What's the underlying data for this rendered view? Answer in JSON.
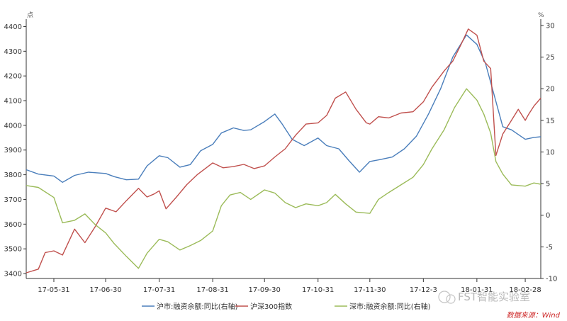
{
  "chart_data": {
    "type": "line",
    "y_left": {
      "unit": "点",
      "ylim": [
        3380,
        4430
      ],
      "ticks": [
        3400,
        3500,
        3600,
        3700,
        3800,
        3900,
        4000,
        4100,
        4200,
        4300,
        4400
      ]
    },
    "y_right": {
      "unit": "%",
      "ylim": [
        -10,
        31
      ],
      "ticks": [
        -10,
        -5,
        0,
        5,
        10,
        15,
        20,
        25,
        30
      ]
    },
    "x_ticks": [
      {
        "date": "2017-05-31",
        "label": "17-05-31"
      },
      {
        "date": "2017-06-30",
        "label": "17-06-30"
      },
      {
        "date": "2017-07-31",
        "label": "17-07-31"
      },
      {
        "date": "2017-08-31",
        "label": "17-08-31"
      },
      {
        "date": "2017-09-30",
        "label": "17-09-30"
      },
      {
        "date": "2017-10-31",
        "label": "17-10-31"
      },
      {
        "date": "2017-11-30",
        "label": "17-11-30"
      },
      {
        "date": "2017-12-31",
        "label": "17-12-3"
      },
      {
        "date": "2018-01-31",
        "label": "18-01-31"
      },
      {
        "date": "2018-02-28",
        "label": "18-02-28"
      }
    ],
    "x_range": [
      "2017-05-15",
      "2018-03-09"
    ],
    "grid": false,
    "legend_position": "bottom",
    "series": [
      {
        "name": "沪市:融资余额:同比(右轴)",
        "axis": "right",
        "color": "#4a7ebb",
        "points": [
          [
            "2017-05-15",
            7.2
          ],
          [
            "2017-05-22",
            6.5
          ],
          [
            "2017-05-31",
            6.2
          ],
          [
            "2017-06-05",
            5.2
          ],
          [
            "2017-06-12",
            6.3
          ],
          [
            "2017-06-20",
            6.8
          ],
          [
            "2017-06-30",
            6.6
          ],
          [
            "2017-07-05",
            6.1
          ],
          [
            "2017-07-12",
            5.6
          ],
          [
            "2017-07-19",
            5.7
          ],
          [
            "2017-07-24",
            7.8
          ],
          [
            "2017-07-31",
            9.4
          ],
          [
            "2017-08-05",
            9.1
          ],
          [
            "2017-08-12",
            7.6
          ],
          [
            "2017-08-18",
            8.0
          ],
          [
            "2017-08-24",
            10.2
          ],
          [
            "2017-08-31",
            11.2
          ],
          [
            "2017-09-05",
            13.0
          ],
          [
            "2017-09-12",
            13.8
          ],
          [
            "2017-09-18",
            13.4
          ],
          [
            "2017-09-22",
            13.5
          ],
          [
            "2017-09-30",
            14.8
          ],
          [
            "2017-10-06",
            16.0
          ],
          [
            "2017-10-10",
            14.5
          ],
          [
            "2017-10-16",
            12.0
          ],
          [
            "2017-10-23",
            11.0
          ],
          [
            "2017-10-31",
            12.2
          ],
          [
            "2017-11-05",
            11.0
          ],
          [
            "2017-11-12",
            10.5
          ],
          [
            "2017-11-18",
            8.6
          ],
          [
            "2017-11-24",
            6.8
          ],
          [
            "2017-11-30",
            8.5
          ],
          [
            "2017-12-06",
            8.8
          ],
          [
            "2017-12-13",
            9.2
          ],
          [
            "2017-12-20",
            10.5
          ],
          [
            "2017-12-27",
            12.5
          ],
          [
            "2018-01-03",
            16.0
          ],
          [
            "2018-01-10",
            20.0
          ],
          [
            "2018-01-17",
            25.0
          ],
          [
            "2018-01-25",
            28.5
          ],
          [
            "2018-01-31",
            27.0
          ],
          [
            "2018-02-05",
            24.0
          ],
          [
            "2018-02-10",
            19.0
          ],
          [
            "2018-02-15",
            14.0
          ],
          [
            "2018-02-20",
            13.5
          ],
          [
            "2018-02-28",
            12.0
          ],
          [
            "2018-03-05",
            12.3
          ],
          [
            "2018-03-09",
            12.4
          ]
        ]
      },
      {
        "name": "沪深300指数",
        "axis": "left",
        "color": "#c0504d",
        "points": [
          [
            "2017-05-15",
            3403
          ],
          [
            "2017-05-22",
            3418
          ],
          [
            "2017-05-26",
            3485
          ],
          [
            "2017-05-31",
            3492
          ],
          [
            "2017-06-05",
            3475
          ],
          [
            "2017-06-12",
            3580
          ],
          [
            "2017-06-18",
            3525
          ],
          [
            "2017-06-24",
            3590
          ],
          [
            "2017-06-30",
            3665
          ],
          [
            "2017-07-06",
            3650
          ],
          [
            "2017-07-12",
            3695
          ],
          [
            "2017-07-19",
            3745
          ],
          [
            "2017-07-24",
            3710
          ],
          [
            "2017-07-28",
            3722
          ],
          [
            "2017-07-31",
            3735
          ],
          [
            "2017-08-04",
            3662
          ],
          [
            "2017-08-10",
            3710
          ],
          [
            "2017-08-16",
            3760
          ],
          [
            "2017-08-22",
            3800
          ],
          [
            "2017-08-31",
            3848
          ],
          [
            "2017-09-06",
            3828
          ],
          [
            "2017-09-12",
            3833
          ],
          [
            "2017-09-18",
            3842
          ],
          [
            "2017-09-24",
            3825
          ],
          [
            "2017-09-30",
            3836
          ],
          [
            "2017-10-06",
            3872
          ],
          [
            "2017-10-12",
            3905
          ],
          [
            "2017-10-18",
            3960
          ],
          [
            "2017-10-24",
            4005
          ],
          [
            "2017-10-31",
            4010
          ],
          [
            "2017-11-05",
            4040
          ],
          [
            "2017-11-10",
            4110
          ],
          [
            "2017-11-16",
            4135
          ],
          [
            "2017-11-22",
            4065
          ],
          [
            "2017-11-28",
            4010
          ],
          [
            "2017-11-30",
            4005
          ],
          [
            "2017-12-05",
            4035
          ],
          [
            "2017-12-11",
            4030
          ],
          [
            "2017-12-18",
            4050
          ],
          [
            "2017-12-25",
            4055
          ],
          [
            "2017-12-31",
            4095
          ],
          [
            "2018-01-05",
            4155
          ],
          [
            "2018-01-12",
            4220
          ],
          [
            "2018-01-17",
            4260
          ],
          [
            "2018-01-22",
            4330
          ],
          [
            "2018-01-26",
            4390
          ],
          [
            "2018-01-31",
            4365
          ],
          [
            "2018-02-04",
            4260
          ],
          [
            "2018-02-08",
            4230
          ],
          [
            "2018-02-11",
            3878
          ],
          [
            "2018-02-15",
            3965
          ],
          [
            "2018-02-20",
            4020
          ],
          [
            "2018-02-24",
            4065
          ],
          [
            "2018-02-28",
            4020
          ],
          [
            "2018-03-02",
            4045
          ],
          [
            "2018-03-05",
            4078
          ],
          [
            "2018-03-09",
            4110
          ]
        ]
      },
      {
        "name": "深市:融资余额:同比(右轴)",
        "axis": "right",
        "color": "#9bbb59",
        "points": [
          [
            "2017-05-15",
            4.7
          ],
          [
            "2017-05-22",
            4.4
          ],
          [
            "2017-05-31",
            2.8
          ],
          [
            "2017-06-05",
            -1.2
          ],
          [
            "2017-06-12",
            -0.8
          ],
          [
            "2017-06-18",
            0.2
          ],
          [
            "2017-06-24",
            -1.5
          ],
          [
            "2017-06-30",
            -2.8
          ],
          [
            "2017-07-05",
            -4.5
          ],
          [
            "2017-07-12",
            -6.5
          ],
          [
            "2017-07-19",
            -8.4
          ],
          [
            "2017-07-24",
            -6.0
          ],
          [
            "2017-07-31",
            -3.8
          ],
          [
            "2017-08-05",
            -4.2
          ],
          [
            "2017-08-12",
            -5.5
          ],
          [
            "2017-08-18",
            -4.8
          ],
          [
            "2017-08-24",
            -4.0
          ],
          [
            "2017-08-31",
            -2.5
          ],
          [
            "2017-09-05",
            1.5
          ],
          [
            "2017-09-10",
            3.2
          ],
          [
            "2017-09-16",
            3.6
          ],
          [
            "2017-09-22",
            2.5
          ],
          [
            "2017-09-30",
            4.0
          ],
          [
            "2017-10-06",
            3.5
          ],
          [
            "2017-10-12",
            2.0
          ],
          [
            "2017-10-18",
            1.2
          ],
          [
            "2017-10-24",
            1.8
          ],
          [
            "2017-10-31",
            1.5
          ],
          [
            "2017-11-05",
            2.0
          ],
          [
            "2017-11-10",
            3.3
          ],
          [
            "2017-11-16",
            1.8
          ],
          [
            "2017-11-22",
            0.5
          ],
          [
            "2017-11-30",
            0.3
          ],
          [
            "2017-12-05",
            2.5
          ],
          [
            "2017-12-11",
            3.6
          ],
          [
            "2017-12-18",
            4.8
          ],
          [
            "2017-12-25",
            6.0
          ],
          [
            "2017-12-31",
            8.0
          ],
          [
            "2018-01-05",
            10.5
          ],
          [
            "2018-01-12",
            13.5
          ],
          [
            "2018-01-18",
            17.0
          ],
          [
            "2018-01-25",
            20.0
          ],
          [
            "2018-01-31",
            18.2
          ],
          [
            "2018-02-04",
            16.0
          ],
          [
            "2018-02-08",
            13.0
          ],
          [
            "2018-02-11",
            8.5
          ],
          [
            "2018-02-15",
            6.5
          ],
          [
            "2018-02-20",
            4.8
          ],
          [
            "2018-02-28",
            4.6
          ],
          [
            "2018-03-05",
            5.1
          ],
          [
            "2018-03-09",
            4.9
          ]
        ]
      }
    ]
  },
  "watermark": "FST智能实验室",
  "source": "数据来源：Wind",
  "colors": {
    "axis": "#333333",
    "watermark": "#b8b8b8",
    "source": "#cc2222"
  }
}
